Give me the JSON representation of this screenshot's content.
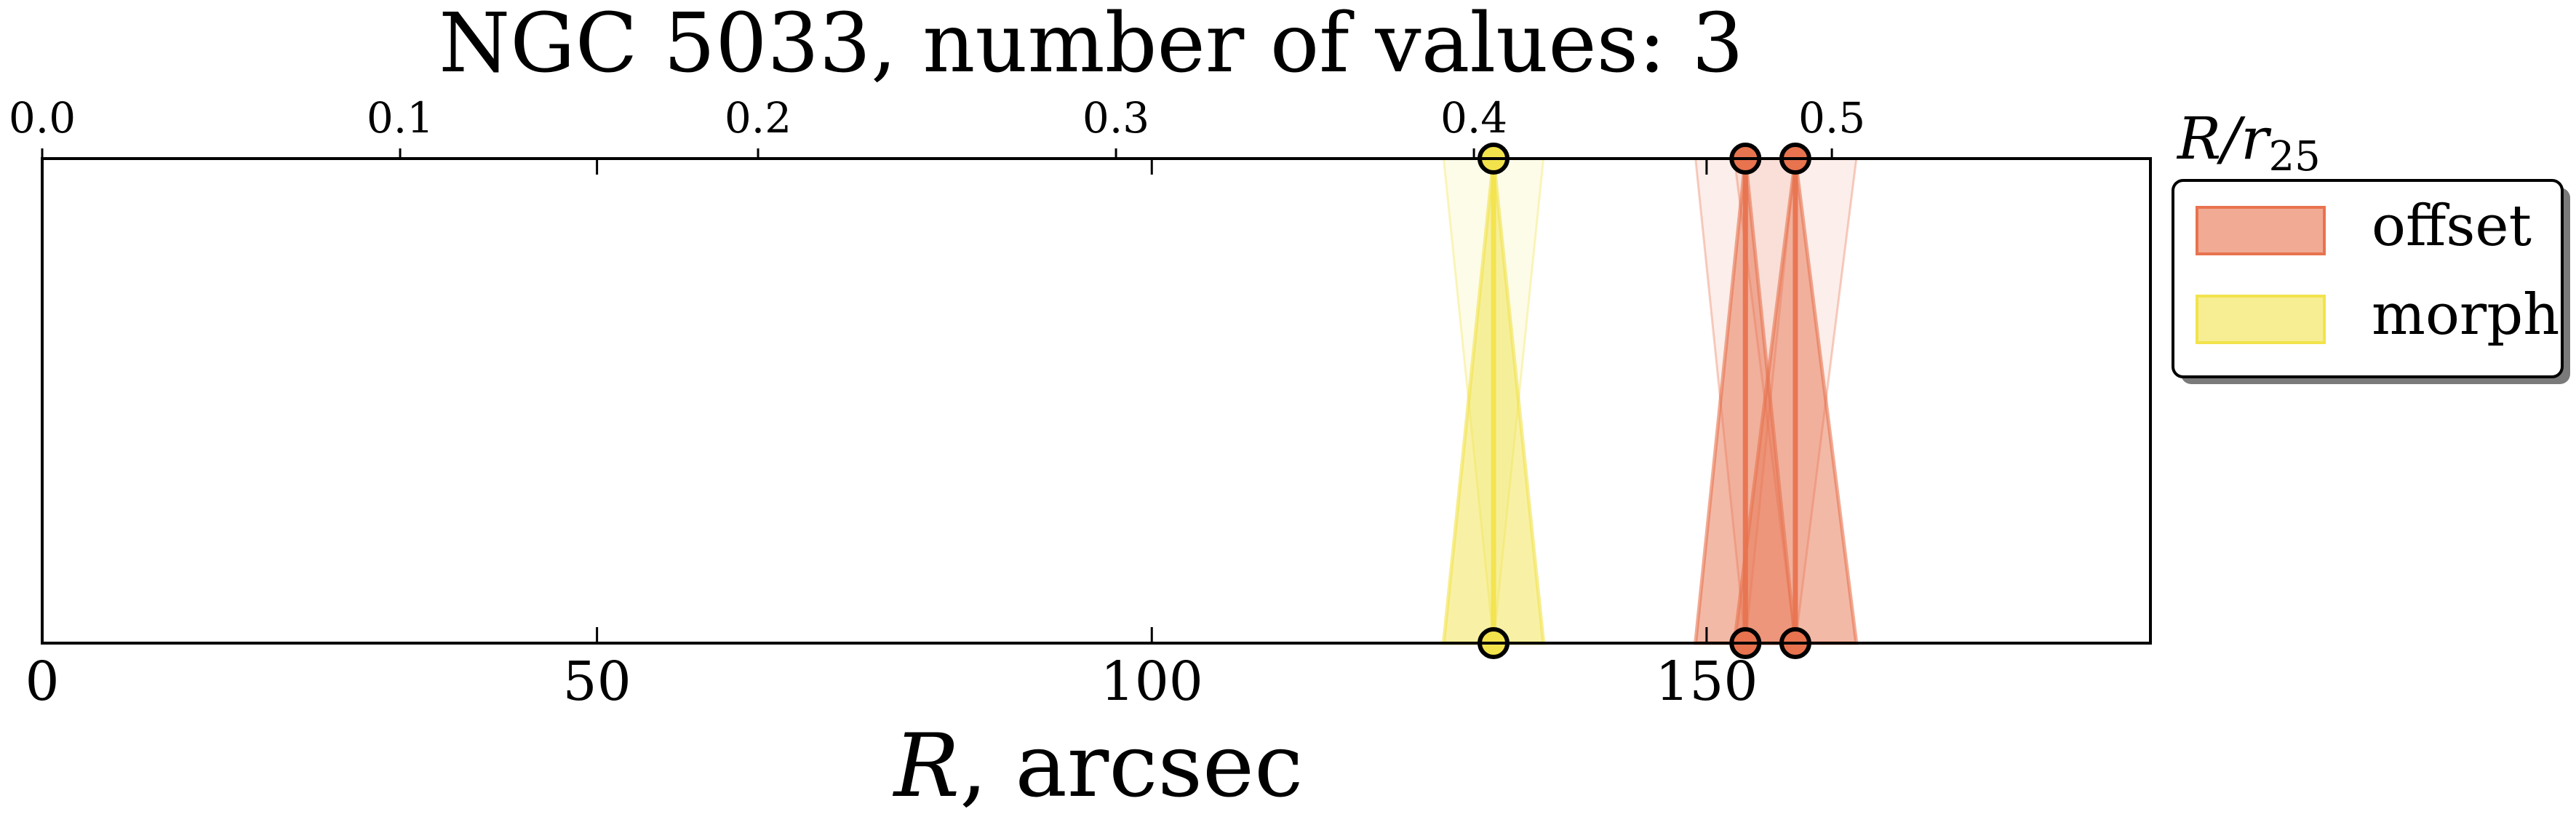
{
  "chart_data": {
    "type": "scatter",
    "title": "NGC 5033, number of values: 3",
    "xlabel": "R, arcsec",
    "x2label": "R/r25",
    "xlim": [
      0,
      190
    ],
    "x2lim": [
      0.0,
      0.589
    ],
    "xticks": [
      0,
      50,
      100,
      150
    ],
    "x2ticks": [
      0.0,
      0.1,
      0.2,
      0.3,
      0.4,
      0.5
    ],
    "xtick_labels": [
      "0",
      "50",
      "100",
      "150"
    ],
    "x2tick_labels": [
      "0.0",
      "0.1",
      "0.2",
      "0.3",
      "0.4",
      "0.5"
    ],
    "grid": false,
    "legend_position": "right",
    "series": [
      {
        "name": "offset",
        "color": "#e8734f",
        "values": [
          153.5,
          158.0
        ],
        "half_width": [
          4.5,
          5.5
        ]
      },
      {
        "name": "morph",
        "color": "#f2e34c",
        "values": [
          130.8
        ],
        "half_width": [
          4.5
        ]
      }
    ]
  }
}
